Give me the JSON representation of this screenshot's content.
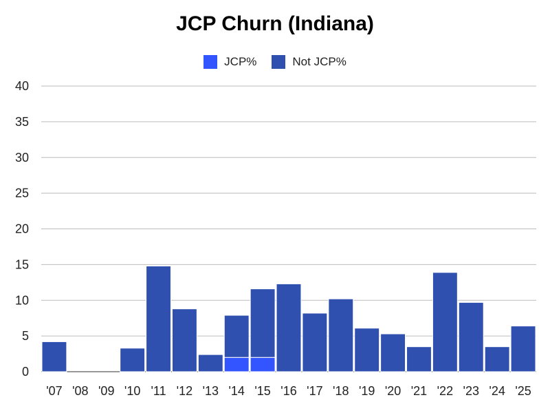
{
  "chart_data": {
    "type": "bar",
    "stacked": true,
    "title": "JCP Churn (Indiana)",
    "xlabel": "",
    "ylabel": "",
    "ylim": [
      0,
      40
    ],
    "yticks": [
      0,
      5,
      10,
      15,
      20,
      25,
      30,
      35,
      40
    ],
    "grid": true,
    "legend_position": "top",
    "categories": [
      "'07",
      "'08",
      "'09",
      "'10",
      "'11",
      "'12",
      "'13",
      "'14",
      "'15",
      "'16",
      "'17",
      "'18",
      "'19",
      "'20",
      "'21",
      "'22",
      "'23",
      "'24",
      "'25"
    ],
    "series": [
      {
        "name": "JCP%",
        "color": "#3355ff",
        "values": [
          0,
          0,
          0,
          0,
          0,
          0,
          0,
          2,
          2,
          0,
          0,
          0,
          0,
          0,
          0,
          0,
          0,
          0,
          0
        ]
      },
      {
        "name": "Not JCP%",
        "color": "#3050b0",
        "values": [
          4.2,
          0,
          0,
          3.3,
          14.8,
          8.8,
          2.4,
          5.9,
          9.6,
          12.3,
          8.2,
          10.2,
          6.1,
          5.3,
          3.5,
          13.9,
          9.7,
          3.5,
          6.4
        ]
      }
    ]
  }
}
